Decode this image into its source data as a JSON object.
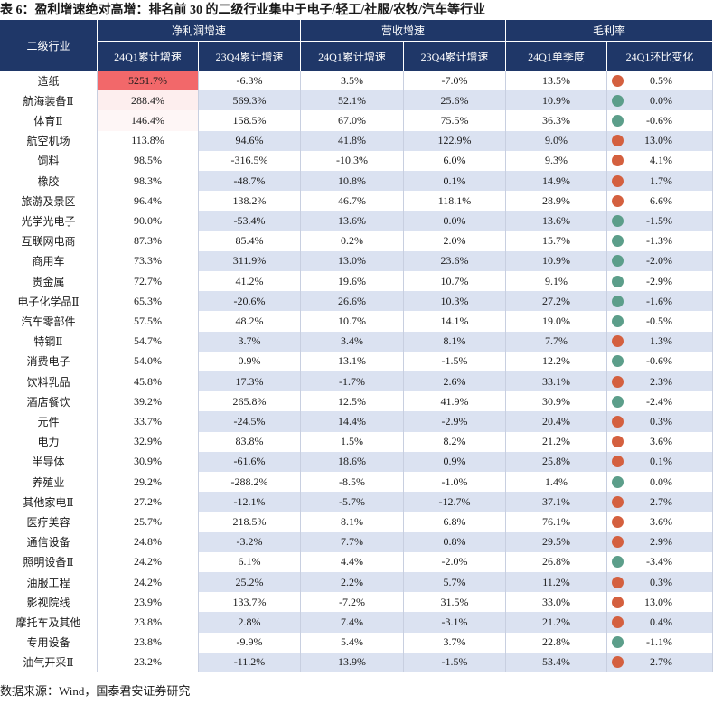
{
  "title": "表 6：盈利增速绝对高增：排名前 30 的二级行业集中于电子/轻工/社服/农牧/汽车等行业",
  "table": {
    "row_header": "二级行业",
    "group_headers": [
      "净利润增速",
      "营收增速",
      "毛利率"
    ],
    "sub_headers": [
      "24Q1累计增速",
      "23Q4累计增速",
      "24Q1累计增速",
      "23Q4累计增速",
      "24Q1单季度",
      "24Q1环比变化"
    ],
    "rows": [
      [
        "造纸",
        "5251.7%",
        "-6.3%",
        "3.5%",
        "-7.0%",
        "13.5%",
        "0.5%"
      ],
      [
        "航海装备Ⅱ",
        "288.4%",
        "569.3%",
        "52.1%",
        "25.6%",
        "10.9%",
        "0.0%"
      ],
      [
        "体育Ⅱ",
        "146.4%",
        "158.5%",
        "67.0%",
        "75.5%",
        "36.3%",
        "-0.6%"
      ],
      [
        "航空机场",
        "113.8%",
        "94.6%",
        "41.8%",
        "122.9%",
        "9.0%",
        "13.0%"
      ],
      [
        "饲料",
        "98.5%",
        "-316.5%",
        "-10.3%",
        "6.0%",
        "9.3%",
        "4.1%"
      ],
      [
        "橡胶",
        "98.3%",
        "-48.7%",
        "10.8%",
        "0.1%",
        "14.9%",
        "1.7%"
      ],
      [
        "旅游及景区",
        "96.4%",
        "138.2%",
        "46.7%",
        "118.1%",
        "28.9%",
        "6.6%"
      ],
      [
        "光学光电子",
        "90.0%",
        "-53.4%",
        "13.6%",
        "0.0%",
        "13.6%",
        "-1.5%"
      ],
      [
        "互联网电商",
        "87.3%",
        "85.4%",
        "0.2%",
        "2.0%",
        "15.7%",
        "-1.3%"
      ],
      [
        "商用车",
        "73.3%",
        "311.9%",
        "13.0%",
        "23.6%",
        "10.9%",
        "-2.0%"
      ],
      [
        "贵金属",
        "72.7%",
        "41.2%",
        "19.6%",
        "10.7%",
        "9.1%",
        "-2.9%"
      ],
      [
        "电子化学品Ⅱ",
        "65.3%",
        "-20.6%",
        "26.6%",
        "10.3%",
        "27.2%",
        "-1.6%"
      ],
      [
        "汽车零部件",
        "57.5%",
        "48.2%",
        "10.7%",
        "14.1%",
        "19.0%",
        "-0.5%"
      ],
      [
        "特钢Ⅱ",
        "54.7%",
        "3.7%",
        "3.4%",
        "8.1%",
        "7.7%",
        "1.3%"
      ],
      [
        "消费电子",
        "54.0%",
        "0.9%",
        "13.1%",
        "-1.5%",
        "12.2%",
        "-0.6%"
      ],
      [
        "饮料乳品",
        "45.8%",
        "17.3%",
        "-1.7%",
        "2.6%",
        "33.1%",
        "2.3%"
      ],
      [
        "酒店餐饮",
        "39.2%",
        "265.8%",
        "12.5%",
        "41.9%",
        "30.9%",
        "-2.4%"
      ],
      [
        "元件",
        "33.7%",
        "-24.5%",
        "14.4%",
        "-2.9%",
        "20.4%",
        "0.3%"
      ],
      [
        "电力",
        "32.9%",
        "83.8%",
        "1.5%",
        "8.2%",
        "21.2%",
        "3.6%"
      ],
      [
        "半导体",
        "30.9%",
        "-61.6%",
        "18.6%",
        "0.9%",
        "25.8%",
        "0.1%"
      ],
      [
        "养殖业",
        "29.2%",
        "-288.2%",
        "-8.5%",
        "-1.0%",
        "1.4%",
        "0.0%"
      ],
      [
        "其他家电Ⅱ",
        "27.2%",
        "-12.1%",
        "-5.7%",
        "-12.7%",
        "37.1%",
        "2.7%"
      ],
      [
        "医疗美容",
        "25.7%",
        "218.5%",
        "8.1%",
        "6.8%",
        "76.1%",
        "3.6%"
      ],
      [
        "通信设备",
        "24.8%",
        "-3.2%",
        "7.7%",
        "0.8%",
        "29.5%",
        "2.9%"
      ],
      [
        "照明设备Ⅱ",
        "24.2%",
        "6.1%",
        "4.4%",
        "-2.0%",
        "26.8%",
        "-3.4%"
      ],
      [
        "油服工程",
        "24.2%",
        "25.2%",
        "2.2%",
        "5.7%",
        "11.2%",
        "0.3%"
      ],
      [
        "影视院线",
        "23.9%",
        "133.7%",
        "-7.2%",
        "31.5%",
        "33.0%",
        "13.0%"
      ],
      [
        "摩托车及其他",
        "23.8%",
        "2.8%",
        "7.4%",
        "-3.1%",
        "21.2%",
        "0.4%"
      ],
      [
        "专用设备",
        "23.8%",
        "-9.9%",
        "5.4%",
        "3.7%",
        "22.8%",
        "-1.1%"
      ],
      [
        "油气开采Ⅱ",
        "23.2%",
        "-11.2%",
        "13.9%",
        "-1.5%",
        "53.4%",
        "2.7%"
      ]
    ],
    "first_value_fills": [
      "#f2686a",
      "#fdeeee",
      "#fef6f6",
      "#ffffff",
      "#ffffff",
      "#ffffff",
      "#ffffff",
      "#ffffff",
      "#ffffff",
      "#ffffff",
      "#ffffff",
      "#ffffff",
      "#ffffff",
      "#ffffff",
      "#ffffff",
      "#ffffff",
      "#ffffff",
      "#ffffff",
      "#ffffff",
      "#ffffff",
      "#ffffff",
      "#ffffff",
      "#ffffff",
      "#ffffff",
      "#ffffff",
      "#ffffff",
      "#ffffff",
      "#ffffff",
      "#ffffff",
      "#ffffff"
    ],
    "dot_colors": [
      "#d4603f",
      "#5c9e8a",
      "#5c9e8a",
      "#d4603f",
      "#d4603f",
      "#d4603f",
      "#d4603f",
      "#5c9e8a",
      "#5c9e8a",
      "#5c9e8a",
      "#5c9e8a",
      "#5c9e8a",
      "#5c9e8a",
      "#d4603f",
      "#5c9e8a",
      "#d4603f",
      "#5c9e8a",
      "#d4603f",
      "#d4603f",
      "#d4603f",
      "#5c9e8a",
      "#d4603f",
      "#d4603f",
      "#d4603f",
      "#5c9e8a",
      "#d4603f",
      "#d4603f",
      "#d4603f",
      "#5c9e8a",
      "#d4603f"
    ]
  },
  "source": "数据来源：Wind，国泰君安证券研究"
}
